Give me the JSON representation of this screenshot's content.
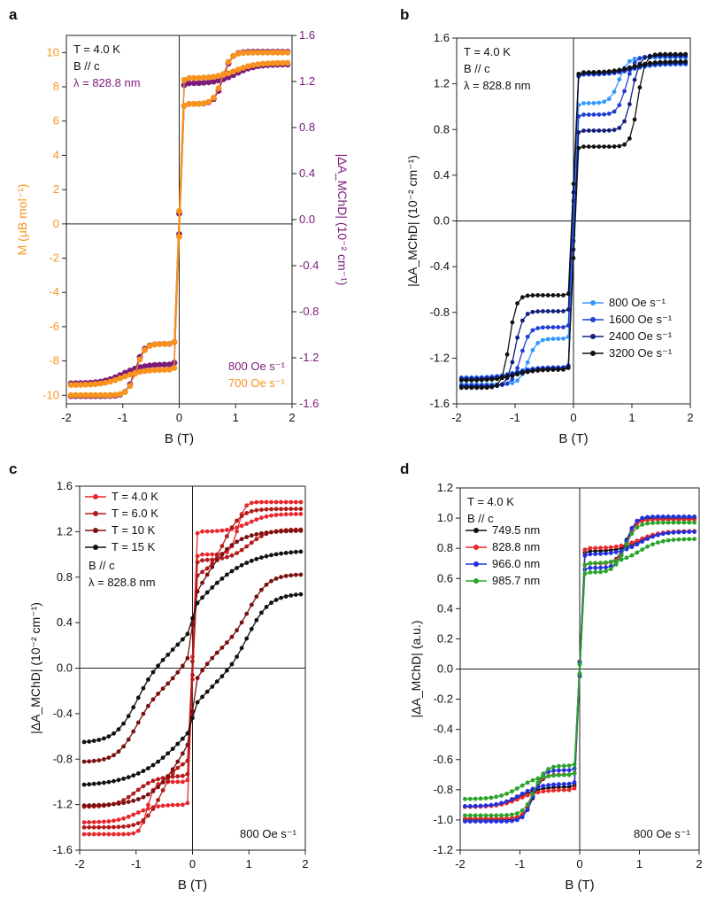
{
  "chart_data": [
    {
      "panel": "a",
      "type": "line",
      "xlabel": "B (T)",
      "ylabel": "M (μB mol⁻¹)",
      "ylabel_right": "|ΔA_MChD| (10⁻² cm⁻¹)",
      "xlim": [
        -2,
        2
      ],
      "ylim": [
        -10.5,
        11.0
      ],
      "ylim_right": [
        -1.6,
        1.6
      ],
      "xticks": [
        -2,
        -1,
        0,
        1,
        2
      ],
      "yticks": [
        -10,
        -8,
        -6,
        -4,
        -2,
        0,
        2,
        4,
        6,
        8,
        10
      ],
      "yticks_right": [
        -1.6,
        -1.2,
        -0.8,
        -0.4,
        0.0,
        0.4,
        0.8,
        1.2,
        1.6
      ],
      "ytick_labels_right": [
        "-1.6",
        "-1.2",
        "-0.8",
        "-0.4",
        "0.0",
        "0.4",
        "0.8",
        "1.2",
        "1.6"
      ],
      "annotations": [
        "T = 4.0 K",
        "B // c",
        "λ = 828.8 nm"
      ],
      "legend": [
        {
          "label": "800 Oe s⁻¹",
          "color": "#7b1a7b"
        },
        {
          "label": "700 Oe s⁻¹",
          "color": "#f7931e"
        }
      ],
      "axis_color_left": "#f7931e",
      "axis_color_right": "#7b1a7b",
      "hyst": {
        "sat": 10.0,
        "hc": 0.78,
        "kink": 0.15,
        "base": 8.4,
        "plat": 1.5
      },
      "series": [
        {
          "label": "800 Oe s⁻¹",
          "color": "#7b1a7b",
          "hyst": {
            "sat": 10.05,
            "hc": 0.78,
            "kink": 0.15,
            "base": 8.2,
            "plat": 1.2
          }
        },
        {
          "label": "700 Oe s⁻¹",
          "color": "#f7931e",
          "hyst": {
            "sat": 10.0,
            "hc": 0.76,
            "kink": 0.15,
            "base": 8.5,
            "plat": 1.5
          }
        }
      ]
    },
    {
      "panel": "b",
      "type": "line",
      "xlabel": "B (T)",
      "ylabel": "|ΔA_MChD| (10⁻² cm⁻¹)",
      "xlim": [
        -2,
        2
      ],
      "ylim": [
        -1.6,
        1.6
      ],
      "xticks": [
        -2,
        -1,
        0,
        1,
        2
      ],
      "yticks": [
        -1.6,
        -1.2,
        -0.8,
        -0.4,
        0.0,
        0.4,
        0.8,
        1.2,
        1.6
      ],
      "ytick_labels": [
        "-1.6",
        "-1.2",
        "-0.8",
        "-0.4",
        "0.0",
        "0.4",
        "0.8",
        "1.2",
        "1.6"
      ],
      "annotations": [
        "T = 4.0 K",
        "B // c",
        "λ = 828.8 nm"
      ],
      "legend_note": "800 Oe s⁻¹",
      "series": [
        {
          "label": "800 Oe s⁻¹",
          "color": "#3399ff",
          "hyst": {
            "sat": 1.43,
            "hc": 0.78,
            "kink": 0.15,
            "base": 1.28,
            "plat": 0.25
          }
        },
        {
          "label": "1600 Oe s⁻¹",
          "color": "#1f3fd6",
          "hyst": {
            "sat": 1.44,
            "hc": 0.9,
            "kink": 0.14,
            "base": 1.28,
            "plat": 0.35
          }
        },
        {
          "label": "2400 Oe s⁻¹",
          "color": "#11207a",
          "hyst": {
            "sat": 1.45,
            "hc": 1.0,
            "kink": 0.13,
            "base": 1.29,
            "plat": 0.5
          }
        },
        {
          "label": "3200 Oe s⁻¹",
          "color": "#111111",
          "hyst": {
            "sat": 1.46,
            "hc": 1.1,
            "kink": 0.12,
            "base": 1.3,
            "plat": 0.65
          }
        }
      ]
    },
    {
      "panel": "c",
      "type": "line",
      "xlabel": "B (T)",
      "ylabel": "|ΔA_MChD| (10⁻² cm⁻¹)",
      "xlim": [
        -2,
        2
      ],
      "ylim": [
        -1.6,
        1.6
      ],
      "xticks": [
        -2,
        -1,
        0,
        1,
        2
      ],
      "yticks": [
        -1.6,
        -1.2,
        -0.8,
        -0.4,
        0.0,
        0.4,
        0.8,
        1.2,
        1.6
      ],
      "ytick_labels": [
        "-1.6",
        "-1.2",
        "-0.8",
        "-0.4",
        "0.0",
        "0.4",
        "0.8",
        "1.2",
        "1.6"
      ],
      "annotations": [
        "B // c",
        "λ = 828.8 nm"
      ],
      "note": "800 Oe s⁻¹",
      "series": [
        {
          "label": "T = 4.0 K",
          "color": "#e8282d",
          "hyst": {
            "sat": 1.46,
            "hc": 0.8,
            "kink": 0.12,
            "base": 1.2,
            "plat": 0.2
          }
        },
        {
          "label": "T = 6.0 K",
          "color": "#b31b1b",
          "hyst": {
            "sat": 1.4,
            "hc": 0.55,
            "kink": 0.3,
            "base": 0.95,
            "plat": 0.15
          }
        },
        {
          "label": "T = 10 K",
          "color": "#7a1010",
          "hyst": {
            "sat": 1.21,
            "hc": 0.12,
            "kink": 0.6,
            "base": 0.25,
            "plat": 0.05
          }
        },
        {
          "label": "T = 15 K",
          "color": "#111111",
          "hyst": {
            "sat": 1.04,
            "hc": 0.06,
            "kink": 0.9,
            "base": 0.1,
            "plat": 0.02
          }
        }
      ]
    },
    {
      "panel": "d",
      "type": "line",
      "xlabel": "B (T)",
      "ylabel": "|ΔA_MChD| (a.u.)",
      "xlim": [
        -2,
        2
      ],
      "ylim": [
        -1.2,
        1.2
      ],
      "xticks": [
        -2,
        -1,
        0,
        1,
        2
      ],
      "yticks": [
        -1.2,
        -1.0,
        -0.8,
        -0.6,
        -0.4,
        -0.2,
        0.0,
        0.2,
        0.4,
        0.6,
        0.8,
        1.0,
        1.2
      ],
      "ytick_labels": [
        "-1.2",
        "-1.0",
        "-0.8",
        "-0.6",
        "-0.4",
        "-0.2",
        "0.0",
        "0.2",
        "0.4",
        "0.6",
        "0.8",
        "1.0",
        "1.2"
      ],
      "annotations": [
        "T = 4.0 K",
        "B // c"
      ],
      "note": "800 Oe s⁻¹",
      "series": [
        {
          "label": "749.5 nm",
          "color": "#111111",
          "hyst": {
            "sat": 1.0,
            "hc": 0.78,
            "kink": 0.15,
            "base": 0.78,
            "plat": 0.08
          }
        },
        {
          "label": "828.8 nm",
          "color": "#e8282d",
          "hyst": {
            "sat": 0.99,
            "hc": 0.79,
            "kink": 0.15,
            "base": 0.8,
            "plat": 0.1
          }
        },
        {
          "label": "966.0 nm",
          "color": "#2030e0",
          "hyst": {
            "sat": 1.01,
            "hc": 0.78,
            "kink": 0.15,
            "base": 0.76,
            "plat": 0.09
          }
        },
        {
          "label": "985.7 nm",
          "color": "#2aa52a",
          "hyst": {
            "sat": 0.97,
            "hc": 0.76,
            "kink": 0.18,
            "base": 0.7,
            "plat": 0.06
          }
        }
      ]
    }
  ],
  "panel_labels": [
    "a",
    "b",
    "c",
    "d"
  ],
  "xlabel_text": "B",
  "xlabel_unit": " (T)"
}
